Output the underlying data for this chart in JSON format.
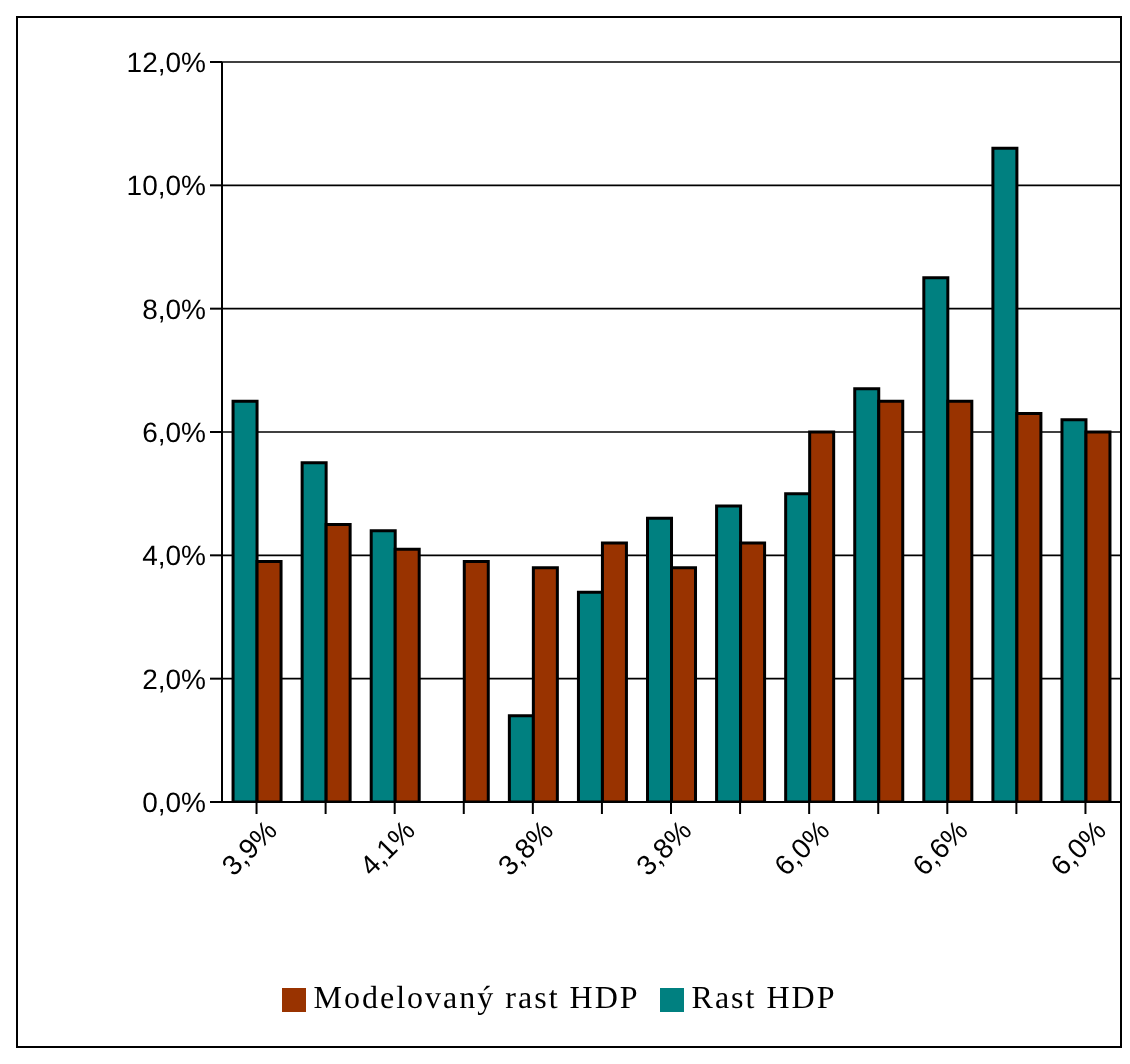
{
  "chart_data": {
    "type": "bar",
    "categories": [
      "3,9%",
      null,
      "4,1%",
      null,
      "3,8%",
      null,
      "3,8%",
      null,
      "6,0%",
      null,
      "6,6%",
      null,
      "6,0%"
    ],
    "series": [
      {
        "name": "Rast HDP",
        "color": "#008080",
        "values": [
          6.5,
          5.5,
          4.4,
          null,
          1.4,
          3.4,
          4.6,
          4.8,
          5.0,
          6.7,
          8.5,
          10.6,
          6.2
        ]
      },
      {
        "name": "Modelovaný rast HDP",
        "color": "#993300",
        "values": [
          3.9,
          4.5,
          4.1,
          3.9,
          3.8,
          4.2,
          3.8,
          4.2,
          6.0,
          6.5,
          6.5,
          6.3,
          6.0
        ]
      }
    ],
    "ylim": [
      0,
      12
    ],
    "yticks": [
      {
        "value": 0,
        "label": "0,0%"
      },
      {
        "value": 2,
        "label": "2,0%"
      },
      {
        "value": 4,
        "label": "4,0%"
      },
      {
        "value": 6,
        "label": "6,0%"
      },
      {
        "value": 8,
        "label": "8,0%"
      },
      {
        "value": 10,
        "label": "10,0%"
      },
      {
        "value": 12,
        "label": "12,0%"
      }
    ],
    "grid": "y",
    "legend": "bottom"
  }
}
